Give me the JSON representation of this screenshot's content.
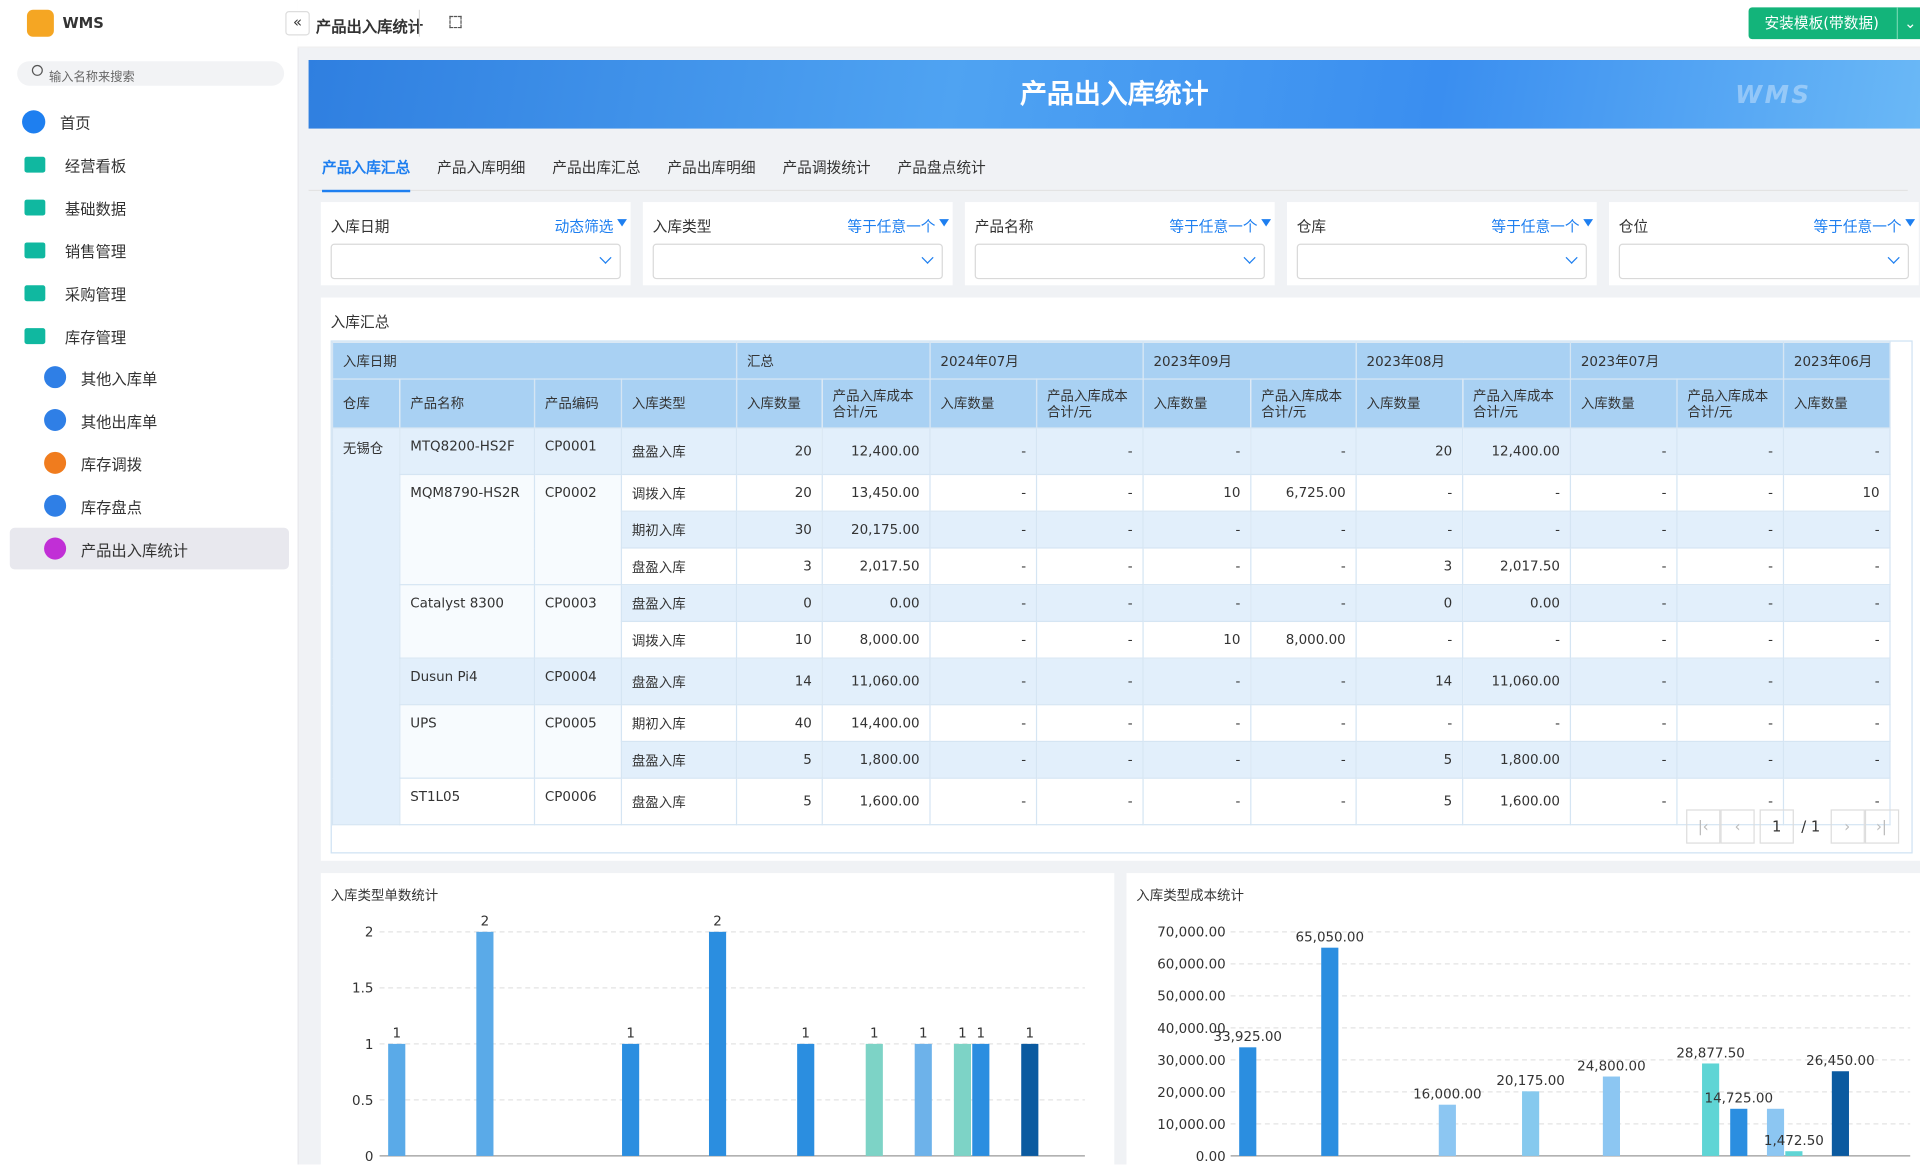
{
  "app": {
    "name": "WMS",
    "search_placeholder": "输入名称来搜索",
    "menu": [
      "首页",
      "经营看板",
      "基础数据",
      "销售管理",
      "采购管理",
      "库存管理"
    ],
    "submenu": [
      "其他入库单",
      "其他出库单",
      "库存调拨",
      "库存盘点",
      "产品出入库统计"
    ]
  },
  "header": {
    "title": "产品出入库统计",
    "button": "安装模板(带数据)"
  },
  "banner": {
    "title": "产品出入库统计",
    "watermark": "WMS"
  },
  "tabs": [
    "产品入库汇总",
    "产品入库明细",
    "产品出库汇总",
    "产品出库明细",
    "产品调拨统计",
    "产品盘点统计"
  ],
  "filters": [
    {
      "label": "入库日期",
      "operator": "动态筛选"
    },
    {
      "label": "入库类型",
      "operator": "等于任意一个"
    },
    {
      "label": "产品名称",
      "operator": "等于任意一个"
    },
    {
      "label": "仓库",
      "operator": "等于任意一个"
    },
    {
      "label": "仓位",
      "operator": "等于任意一个"
    }
  ],
  "table": {
    "title": "入库汇总",
    "group_headers": [
      "入库日期",
      "汇总",
      "2024年07月",
      "2023年09月",
      "2023年08月",
      "2023年07月",
      "2023年06月"
    ],
    "sub_headers": [
      "仓库",
      "产品名称",
      "产品编码",
      "入库类型",
      "入库数量",
      "产品入库成本合计/元",
      "入库数量",
      "产品入库成本合计/元",
      "入库数量",
      "产品入库成本合计/元",
      "入库数量",
      "产品入库成本合计/元",
      "入库数量",
      "产品入库成本合计/元",
      "入库数量"
    ],
    "warehouse": "无锡仓",
    "products": [
      {
        "name": "MTQ8200-HS2F",
        "code": "CP0001",
        "rows": [
          {
            "type": "盘盈入库",
            "values": [
              "20",
              "12,400.00",
              "-",
              "-",
              "-",
              "-",
              "20",
              "12,400.00",
              "-",
              "-",
              "-"
            ]
          }
        ]
      },
      {
        "name": "MQM8790-HS2R",
        "code": "CP0002",
        "rows": [
          {
            "type": "调拨入库",
            "values": [
              "20",
              "13,450.00",
              "-",
              "-",
              "10",
              "6,725.00",
              "-",
              "-",
              "-",
              "-",
              "10"
            ]
          },
          {
            "type": "期初入库",
            "values": [
              "30",
              "20,175.00",
              "-",
              "-",
              "-",
              "-",
              "-",
              "-",
              "-",
              "-",
              "-"
            ]
          },
          {
            "type": "盘盈入库",
            "values": [
              "3",
              "2,017.50",
              "-",
              "-",
              "-",
              "-",
              "3",
              "2,017.50",
              "-",
              "-",
              "-"
            ]
          }
        ]
      },
      {
        "name": "Catalyst 8300",
        "code": "CP0003",
        "rows": [
          {
            "type": "盘盈入库",
            "values": [
              "0",
              "0.00",
              "-",
              "-",
              "-",
              "-",
              "0",
              "0.00",
              "-",
              "-",
              "-"
            ]
          },
          {
            "type": "调拨入库",
            "values": [
              "10",
              "8,000.00",
              "-",
              "-",
              "10",
              "8,000.00",
              "-",
              "-",
              "-",
              "-",
              "-"
            ]
          }
        ]
      },
      {
        "name": "Dusun Pi4",
        "code": "CP0004",
        "rows": [
          {
            "type": "盘盈入库",
            "values": [
              "14",
              "11,060.00",
              "-",
              "-",
              "-",
              "-",
              "14",
              "11,060.00",
              "-",
              "-",
              "-"
            ]
          }
        ]
      },
      {
        "name": "UPS",
        "code": "CP0005",
        "rows": [
          {
            "type": "期初入库",
            "values": [
              "40",
              "14,400.00",
              "-",
              "-",
              "-",
              "-",
              "-",
              "-",
              "-",
              "-",
              "-"
            ]
          },
          {
            "type": "盘盈入库",
            "values": [
              "5",
              "1,800.00",
              "-",
              "-",
              "-",
              "-",
              "5",
              "1,800.00",
              "-",
              "-",
              "-"
            ]
          }
        ]
      },
      {
        "name": "ST1L05",
        "code": "CP0006",
        "rows": [
          {
            "type": "盘盈入库",
            "values": [
              "5",
              "1,600.00",
              "-",
              "-",
              "-",
              "-",
              "5",
              "1,600.00",
              "-",
              "-",
              "-"
            ]
          }
        ]
      }
    ],
    "pagination": {
      "page": 1,
      "pages": "/ 1"
    }
  },
  "charts": [
    {
      "type": "bar",
      "title": "入库类型单数统计",
      "ylim": [
        0,
        2
      ],
      "yticks": [
        0,
        0.5,
        1,
        1.5,
        2
      ],
      "values": [
        1,
        2,
        1,
        2,
        1,
        1,
        1,
        1,
        1,
        1
      ],
      "colors": [
        "#5aaae8",
        "#5aaae8",
        "#2b8ee0",
        "#2b8ee0",
        "#2b8ee0",
        "#7dd3c6",
        "#6db2ea",
        "#7dd3c6",
        "#2b8ee0",
        "#0b5aa0"
      ]
    },
    {
      "type": "bar",
      "title": "入库类型成本统计",
      "ylim": [
        0,
        70000
      ],
      "yticks": [
        {
          "value": 0,
          "label": "0.00"
        },
        {
          "value": 10000,
          "label": "10,000.00"
        },
        {
          "value": 20000,
          "label": "20,000.00"
        },
        {
          "value": 30000,
          "label": "30,000.00"
        },
        {
          "value": 40000,
          "label": "40,000.00"
        },
        {
          "value": 50000,
          "label": "50,000.00"
        },
        {
          "value": 60000,
          "label": "60,000.00"
        },
        {
          "value": 70000,
          "label": "70,000.00"
        }
      ],
      "values": [
        33925,
        65050,
        16000,
        20175,
        24800,
        28877.5,
        14725,
        14725,
        1472.5,
        26450
      ],
      "value_labels": [
        "33,925.00",
        "65,050.00",
        "16,000.00",
        "20,175.00",
        "24,800.00",
        "28,877.50",
        "14,725.00",
        null,
        "1,472.50",
        "26,450.00"
      ],
      "colors": [
        "#2b8ee0",
        "#2b8ee0",
        "#8cc6f2",
        "#86c9ee",
        "#8cc6f2",
        "#5fd5d5",
        "#2b8ee0",
        "#8cc6f2",
        "#5fd5d5",
        "#0b5aa0"
      ]
    }
  ]
}
